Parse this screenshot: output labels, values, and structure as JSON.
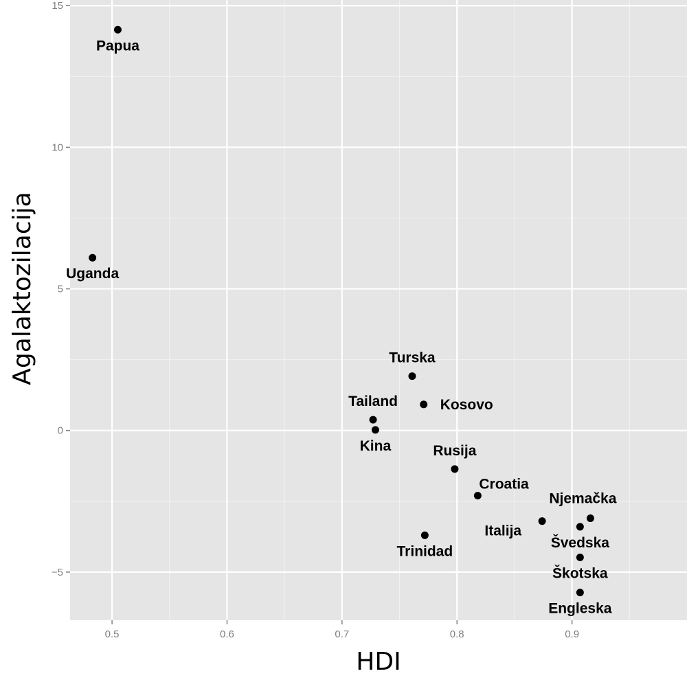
{
  "chart_data": {
    "type": "scatter",
    "title": "",
    "xlabel": "HDI",
    "ylabel": "Agalaktozilacija",
    "xlim": [
      0.4635,
      1.0
    ],
    "ylim": [
      -6.7,
      15.2
    ],
    "x_ticks": [
      0.5,
      0.6,
      0.7,
      0.8,
      0.9
    ],
    "x_tick_labels": [
      "0.5",
      "0.6",
      "0.7",
      "0.8",
      "0.9"
    ],
    "y_ticks": [
      -5,
      0,
      5,
      10,
      15
    ],
    "y_tick_labels": [
      "−5",
      "0",
      "5",
      "10",
      "15"
    ],
    "grid": true,
    "legend": "none",
    "colors": {
      "panel": "#e5e5e5",
      "grid_major": "#ffffff",
      "grid_minor": "#f2f2f2",
      "point": "#000000",
      "tick": "#7f7f7f"
    },
    "points": [
      {
        "label": "Papua",
        "x": 0.505,
        "y": 14.15,
        "label_pos": "below"
      },
      {
        "label": "Uganda",
        "x": 0.483,
        "y": 6.1,
        "label_pos": "below"
      },
      {
        "label": "Turska",
        "x": 0.761,
        "y": 1.92,
        "label_pos": "above"
      },
      {
        "label": "Kosovo",
        "x": 0.771,
        "y": 0.92,
        "label_pos": "right"
      },
      {
        "label": "Tailand",
        "x": 0.727,
        "y": 0.38,
        "label_pos": "above"
      },
      {
        "label": "Kina",
        "x": 0.729,
        "y": 0.02,
        "label_pos": "below"
      },
      {
        "label": "Rusija",
        "x": 0.798,
        "y": -1.36,
        "label_pos": "above"
      },
      {
        "label": "Croatia",
        "x": 0.818,
        "y": -2.3,
        "label_pos": "above-right"
      },
      {
        "label": "Trinidad",
        "x": 0.772,
        "y": -3.7,
        "label_pos": "below"
      },
      {
        "label": "Italija",
        "x": 0.874,
        "y": -3.2,
        "label_pos": "below-left"
      },
      {
        "label": "Njemačka",
        "x": 0.916,
        "y": -3.1,
        "label_pos": "above-left"
      },
      {
        "label": "Švedska",
        "x": 0.907,
        "y": -3.4,
        "label_pos": "below"
      },
      {
        "label": "Škotska",
        "x": 0.907,
        "y": -4.48,
        "label_pos": "below"
      },
      {
        "label": "Engleska",
        "x": 0.907,
        "y": -5.72,
        "label_pos": "below"
      }
    ]
  }
}
